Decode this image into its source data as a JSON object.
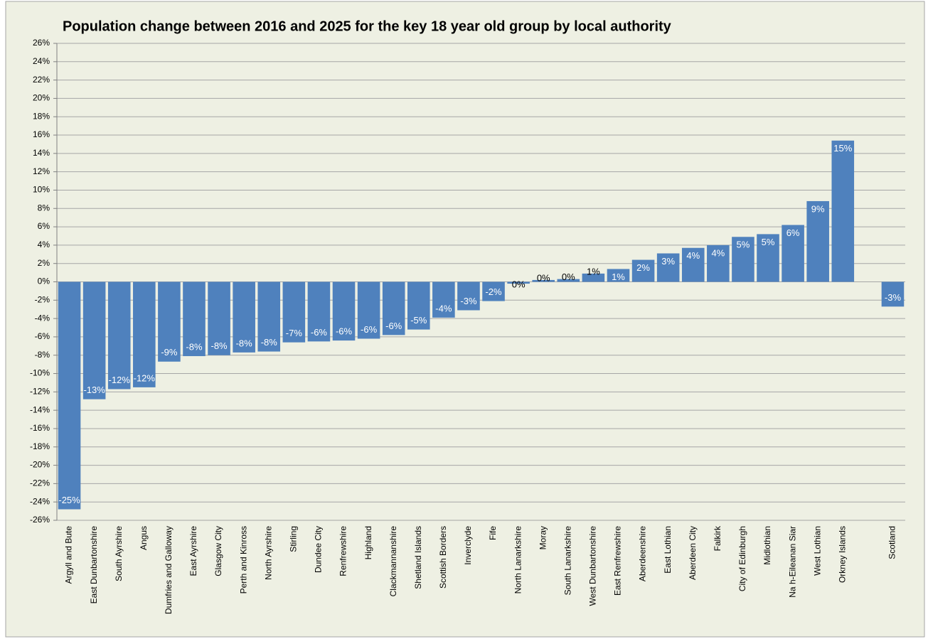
{
  "chart_data": {
    "type": "bar",
    "title": "Population change between 2016 and 2025 for the key 18 year old group by local authority",
    "categories": [
      "Argyll and Bute",
      "East Dunbartonshire",
      "South Ayrshire",
      "Angus",
      "Dumfries and Galloway",
      "East Ayrshire",
      "Glasgow City",
      "Perth and Kinross",
      "North Ayrshire",
      "Stirling",
      "Dundee City",
      "Renfrewshire",
      "Highland",
      "Clackmannanshire",
      "Shetland Islands",
      "Scottish Borders",
      "Inverclyde",
      "Fife",
      "North Lanarkshire",
      "Moray",
      "South Lanarkshire",
      "West Dunbartonshire",
      "East Renfrewshire",
      "Aberdeenshire",
      "East Lothian",
      "Aberdeen City",
      "Falkirk",
      "City of Edinburgh",
      "Midlothian",
      "Na h-Eileanan Siar",
      "West Lothian",
      "Orkney Islands",
      null,
      "Scotland"
    ],
    "values": [
      -24.8,
      -12.8,
      -11.7,
      -11.5,
      -8.7,
      -8.1,
      -8.0,
      -7.7,
      -7.6,
      -6.6,
      -6.5,
      -6.4,
      -6.2,
      -5.8,
      -5.2,
      -3.9,
      -3.1,
      -2.1,
      -0.2,
      0.2,
      0.3,
      0.9,
      1.4,
      2.4,
      3.1,
      3.7,
      4.0,
      4.9,
      5.2,
      6.2,
      8.8,
      15.4,
      null,
      -2.7
    ],
    "value_labels": [
      "-25%",
      "-13%",
      "-12%",
      "-12%",
      "-9%",
      "-8%",
      "-8%",
      "-8%",
      "-8%",
      "-7%",
      "-6%",
      "-6%",
      "-6%",
      "-6%",
      "-5%",
      "-4%",
      "-3%",
      "-2%",
      "0%",
      "0%",
      "0%",
      "1%",
      "1%",
      "2%",
      "3%",
      "4%",
      "4%",
      "5%",
      "5%",
      "6%",
      "9%",
      "15%",
      null,
      "-3%"
    ],
    "color": "#4f81bd",
    "ylim": [
      -26,
      26
    ],
    "yticks": [
      {
        "value": -26,
        "label": "-26%"
      },
      {
        "value": -24,
        "label": "-24%"
      },
      {
        "value": -22,
        "label": "-22%"
      },
      {
        "value": -20,
        "label": "-20%"
      },
      {
        "value": -18,
        "label": "-18%"
      },
      {
        "value": -16,
        "label": "-16%"
      },
      {
        "value": -14,
        "label": "-14%"
      },
      {
        "value": -12,
        "label": "-12%"
      },
      {
        "value": -10,
        "label": "-10%"
      },
      {
        "value": -8,
        "label": "-8%"
      },
      {
        "value": -6,
        "label": "-6%"
      },
      {
        "value": -4,
        "label": "-4%"
      },
      {
        "value": -2,
        "label": "-2%"
      },
      {
        "value": 0,
        "label": "0%"
      },
      {
        "value": 2,
        "label": "2%"
      },
      {
        "value": 4,
        "label": "4%"
      },
      {
        "value": 6,
        "label": "6%"
      },
      {
        "value": 8,
        "label": "8%"
      },
      {
        "value": 10,
        "label": "10%"
      },
      {
        "value": 12,
        "label": "12%"
      },
      {
        "value": 14,
        "label": "14%"
      },
      {
        "value": 16,
        "label": "16%"
      },
      {
        "value": 18,
        "label": "18%"
      },
      {
        "value": 20,
        "label": "20%"
      },
      {
        "value": 22,
        "label": "22%"
      },
      {
        "value": 24,
        "label": "24%"
      },
      {
        "value": 26,
        "label": "26%"
      }
    ],
    "grid": true
  }
}
